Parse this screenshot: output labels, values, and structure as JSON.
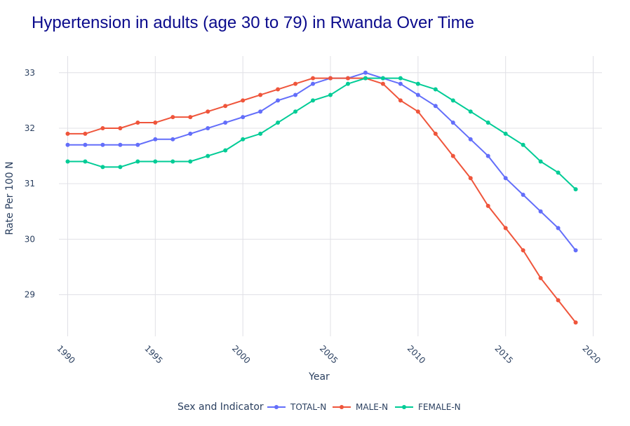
{
  "chart_data": {
    "type": "line",
    "title": "Hypertension in adults (age 30 to 79) in Rwanda Over Time",
    "xlabel": "Year",
    "ylabel": "Rate Per 100 N",
    "xlim": [
      1989.5,
      2020.5
    ],
    "ylim": [
      28.25,
      33.3
    ],
    "x_ticks": [
      1990,
      1995,
      2000,
      2005,
      2010,
      2015,
      2020
    ],
    "y_ticks": [
      29,
      30,
      31,
      32,
      33
    ],
    "grid": true,
    "legend": {
      "title": "Sex and Indicator",
      "placement": "bottom-center"
    },
    "x": [
      1990,
      1991,
      1992,
      1993,
      1994,
      1995,
      1996,
      1997,
      1998,
      1999,
      2000,
      2001,
      2002,
      2003,
      2004,
      2005,
      2006,
      2007,
      2008,
      2009,
      2010,
      2011,
      2012,
      2013,
      2014,
      2015,
      2016,
      2017,
      2018,
      2019
    ],
    "series": [
      {
        "name": "TOTAL-N",
        "color": "#636efa",
        "values": [
          31.7,
          31.7,
          31.7,
          31.7,
          31.7,
          31.8,
          31.8,
          31.9,
          32.0,
          32.1,
          32.2,
          32.3,
          32.5,
          32.6,
          32.8,
          32.9,
          32.9,
          33.0,
          32.9,
          32.8,
          32.6,
          32.4,
          32.1,
          31.8,
          31.5,
          31.1,
          30.8,
          30.5,
          30.2,
          29.8
        ]
      },
      {
        "name": "MALE-N",
        "color": "#ef553b",
        "values": [
          31.9,
          31.9,
          32.0,
          32.0,
          32.1,
          32.1,
          32.2,
          32.2,
          32.3,
          32.4,
          32.5,
          32.6,
          32.7,
          32.8,
          32.9,
          32.9,
          32.9,
          32.9,
          32.8,
          32.5,
          32.3,
          31.9,
          31.5,
          31.1,
          30.6,
          30.2,
          29.8,
          29.3,
          28.9,
          28.5
        ]
      },
      {
        "name": "FEMALE-N",
        "color": "#00cc96",
        "values": [
          31.4,
          31.4,
          31.3,
          31.3,
          31.4,
          31.4,
          31.4,
          31.4,
          31.5,
          31.6,
          31.8,
          31.9,
          32.1,
          32.3,
          32.5,
          32.6,
          32.8,
          32.9,
          32.9,
          32.9,
          32.8,
          32.7,
          32.5,
          32.3,
          32.1,
          31.9,
          31.7,
          31.4,
          31.2,
          30.9
        ]
      }
    ]
  }
}
